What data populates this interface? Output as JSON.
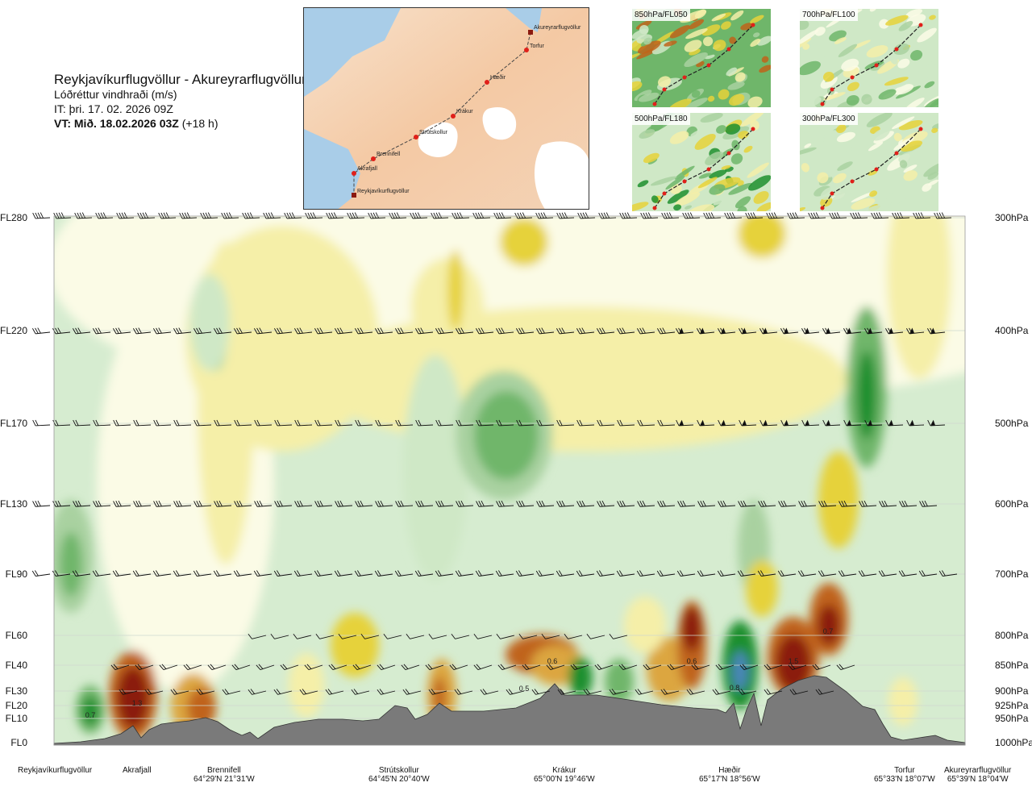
{
  "title": {
    "route": "Reykjavíkurflugvöllur - Akureyrarflugvöllur",
    "parameter": "Lóðréttur vindhraði (m/s)",
    "it": "IT: þri. 17. 02. 2026 09Z",
    "vt_bold": "VT: Mið. 18.02.2026 03Z",
    "vt_rest": "(+18 h)"
  },
  "route_map": {
    "points": [
      {
        "name": "Akureyrarflugvöllur"
      },
      {
        "name": "Torfur"
      },
      {
        "name": "Hæðir"
      },
      {
        "name": "Krákur"
      },
      {
        "name": "Strútskollur"
      },
      {
        "name": "Brennifell"
      },
      {
        "name": "Akrafjall"
      },
      {
        "name": "Reykjavíkurflugvöllur"
      }
    ]
  },
  "thumbnails": [
    {
      "label": "850hPa/FL050"
    },
    {
      "label": "700hPa/FL100"
    },
    {
      "label": "500hPa/FL180"
    },
    {
      "label": "300hPa/FL300"
    }
  ],
  "levels": [
    {
      "fl": "FL280",
      "hpa": "300hPa"
    },
    {
      "fl": "FL220",
      "hpa": "400hPa"
    },
    {
      "fl": "FL170",
      "hpa": "500hPa"
    },
    {
      "fl": "FL130",
      "hpa": "600hPa"
    },
    {
      "fl": "FL90",
      "hpa": "700hPa"
    },
    {
      "fl": "FL60",
      "hpa": "800hPa"
    },
    {
      "fl": "FL40",
      "hpa": "850hPa"
    },
    {
      "fl": "FL30",
      "hpa": "900hPa"
    },
    {
      "fl": "FL20",
      "hpa": "925hPa"
    },
    {
      "fl": "FL10",
      "hpa": "950hPa"
    },
    {
      "fl": "FL0",
      "hpa": "1000hPa"
    }
  ],
  "waypoints": [
    {
      "name": "Reykjavíkurflugvöllur",
      "coord": ""
    },
    {
      "name": "Akrafjall",
      "coord": ""
    },
    {
      "name": "Brennifell",
      "coord": "64°29'N 21°31'W"
    },
    {
      "name": "Strútskollur",
      "coord": "64°45'N 20°40'W"
    },
    {
      "name": "Krákur",
      "coord": "65°00'N 19°46'W"
    },
    {
      "name": "Hæðir",
      "coord": "65°17'N 18°56'W"
    },
    {
      "name": "Torfur",
      "coord": "65°33'N 18°07'W"
    },
    {
      "name": "Akureyrarflugvöllur",
      "coord": "65°39'N 18°04'W"
    }
  ],
  "colors": {
    "strong_down": "#8b1a10",
    "down_3": "#c0641a",
    "down_2": "#dca640",
    "down_1": "#e6d23a",
    "weak_down": "#f5efa8",
    "neutral": "#fbfbe6",
    "weak_up": "#cfe8c6",
    "up_1": "#a9d1a0",
    "up_2": "#6fb66a",
    "up_3": "#1f8f2e",
    "strong_up": "#4a86b8",
    "terrain": "#7a7a7a"
  },
  "chart_data": {
    "type": "heatmap",
    "title": "Lóðréttur vindhraði (m/s)",
    "x_waypoints": [
      "Reykjavíkurflugvöllur",
      "Akrafjall",
      "Brennifell",
      "Strútskollur",
      "Krákur",
      "Hæðir",
      "Torfur",
      "Akureyrarflugvöllur"
    ],
    "y_levels_hpa": [
      1000,
      950,
      925,
      900,
      850,
      800,
      700,
      600,
      500,
      400,
      300
    ],
    "y_levels_fl": [
      0,
      10,
      20,
      30,
      40,
      60,
      90,
      130,
      170,
      220,
      280
    ],
    "annotations": [
      {
        "text": "0.7",
        "near": "Reykjavíkurflugvöllur",
        "level_fl": 10,
        "sign": "up"
      },
      {
        "text": "1.3",
        "near": "Akrafjall",
        "level_fl": 15,
        "sign": "down"
      },
      {
        "text": "0.6",
        "near": "Krákur",
        "level_fl": 40,
        "sign": "down"
      },
      {
        "text": "0.5",
        "near": "Krákur",
        "level_fl": 30,
        "sign": "down"
      },
      {
        "text": "0.6",
        "near": "Hæðir",
        "level_fl": 40,
        "sign": "down"
      },
      {
        "text": "0.8",
        "near": "Hæðir",
        "level_fl": 30,
        "sign": "up"
      },
      {
        "text": "1.5",
        "near": "Hæðir",
        "level_fl": 40,
        "sign": "down"
      },
      {
        "text": "0.7",
        "near": "Hæðir",
        "level_fl": 60,
        "sign": "down"
      }
    ],
    "features": [
      {
        "type": "upward",
        "location": "near Reykjavíkurflugvöllur",
        "levels_fl": [
          70,
          100
        ],
        "magnitude": "weak"
      },
      {
        "type": "upward",
        "location": "between Strútskollur and Krákur",
        "levels_fl": [
          140,
          190
        ],
        "magnitude": "moderate"
      },
      {
        "type": "upward",
        "location": "between Hæðir and Torfur",
        "levels_fl": [
          160,
          210
        ],
        "magnitude": "strong"
      },
      {
        "type": "downward",
        "location": "lee of Akrafjall",
        "levels_fl": [
          0,
          60
        ],
        "magnitude": "strong"
      },
      {
        "type": "downward",
        "location": "east of Hæðir",
        "levels_fl": [
          0,
          100
        ],
        "magnitude": "strong"
      }
    ]
  }
}
